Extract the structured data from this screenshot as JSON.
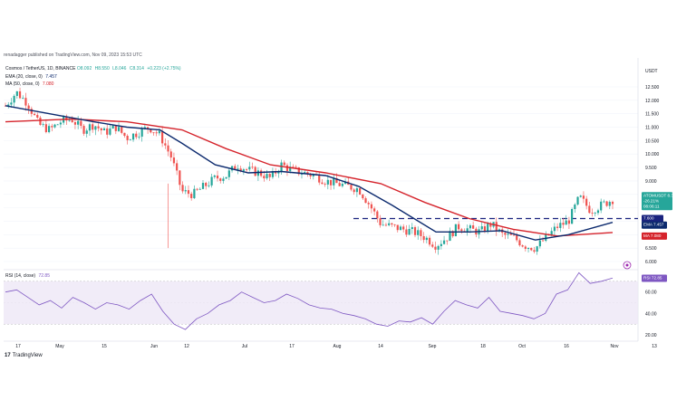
{
  "header": {
    "published_by": "renadagger published on TradingView.com, Nov 09, 2023 15:53 UTC"
  },
  "legend": {
    "symbol": "Cosmos / TetherUS, 1D, BINANCE",
    "ohlc": {
      "open": "O8.092",
      "high": "H8.550",
      "low": "L8.046",
      "close": "C8.314",
      "change": "+0.223 (+2.75%)"
    },
    "ema_label": "EMA (20, close, 0)",
    "ema_value": "7.457",
    "ma_label": "MA (50, close, 0)",
    "ma_value": "7.080",
    "rsi_label": "RSI (14, close)",
    "rsi_value": "72.85"
  },
  "price_axis": {
    "currency": "USDT",
    "ticks": [
      "12.500",
      "12.000",
      "11.500",
      "11.000",
      "10.500",
      "10.000",
      "9.500",
      "9.000",
      "8.500",
      "8.000",
      "7.500",
      "7.000",
      "6.500",
      "6.000"
    ],
    "badges": {
      "symbol": {
        "label": "ATOMUSDT",
        "price": "8.314",
        "change": "-26.21%",
        "countdown": "08:06:11"
      },
      "line": {
        "price": "7.600"
      },
      "ema": {
        "label": "EMA",
        "price": "7.457"
      },
      "ma": {
        "label": "MA",
        "price": "7.080"
      }
    }
  },
  "rsi_axis": {
    "ticks": [
      "60.00",
      "40.00",
      "20.00"
    ],
    "badge": {
      "label": "RSI",
      "value": "72.85"
    }
  },
  "time_axis": {
    "labels": [
      "17",
      "May",
      "15",
      "Jun",
      "12",
      "Jul",
      "17",
      "Aug",
      "14",
      "Sep",
      "18",
      "Oct",
      "16",
      "Nov",
      "13"
    ]
  },
  "colors": {
    "up": "#26a69a",
    "down": "#ef5350",
    "ema": "#0c2a6e",
    "ma": "#d5232b",
    "rsi": "#7e57c2",
    "rsi_band": "#ede7f6",
    "support_line": "#1a237e"
  },
  "chart_data": {
    "type": "candlestick",
    "symbol": "ATOMUSDT",
    "interval": "1D",
    "y_range": [
      6.0,
      12.5
    ],
    "support_line": 7.6,
    "close_series": [
      {
        "x": "Apr 10",
        "y": 11.8
      },
      {
        "x": "Apr 14",
        "y": 12.3
      },
      {
        "x": "Apr 17",
        "y": 11.9
      },
      {
        "x": "Apr 20",
        "y": 11.1
      },
      {
        "x": "Apr 24",
        "y": 10.9
      },
      {
        "x": "Apr 27",
        "y": 11.2
      },
      {
        "x": "May 1",
        "y": 11.3
      },
      {
        "x": "May 5",
        "y": 10.9
      },
      {
        "x": "May 9",
        "y": 11.1
      },
      {
        "x": "May 13",
        "y": 10.8
      },
      {
        "x": "May 17",
        "y": 11.0
      },
      {
        "x": "May 21",
        "y": 10.6
      },
      {
        "x": "May 25",
        "y": 10.8
      },
      {
        "x": "May 29",
        "y": 11.0
      },
      {
        "x": "Jun 2",
        "y": 10.7
      },
      {
        "x": "Jun 6",
        "y": 9.9
      },
      {
        "x": "Jun 10",
        "y": 8.6
      },
      {
        "x": "Jun 14",
        "y": 8.5
      },
      {
        "x": "Jun 18",
        "y": 8.8
      },
      {
        "x": "Jun 22",
        "y": 9.1
      },
      {
        "x": "Jun 26",
        "y": 9.2
      },
      {
        "x": "Jul 1",
        "y": 9.6
      },
      {
        "x": "Jul 5",
        "y": 9.4
      },
      {
        "x": "Jul 9",
        "y": 9.3
      },
      {
        "x": "Jul 13",
        "y": 9.1
      },
      {
        "x": "Jul 17",
        "y": 9.6
      },
      {
        "x": "Jul 21",
        "y": 9.4
      },
      {
        "x": "Jul 25",
        "y": 9.3
      },
      {
        "x": "Jul 29",
        "y": 9.2
      },
      {
        "x": "Aug 2",
        "y": 9.0
      },
      {
        "x": "Aug 6",
        "y": 8.9
      },
      {
        "x": "Aug 10",
        "y": 8.8
      },
      {
        "x": "Aug 14",
        "y": 8.7
      },
      {
        "x": "Aug 17",
        "y": 8.1
      },
      {
        "x": "Aug 21",
        "y": 7.4
      },
      {
        "x": "Aug 25",
        "y": 7.3
      },
      {
        "x": "Aug 29",
        "y": 7.2
      },
      {
        "x": "Sep 2",
        "y": 7.1
      },
      {
        "x": "Sep 6",
        "y": 6.9
      },
      {
        "x": "Sep 10",
        "y": 6.6
      },
      {
        "x": "Sep 14",
        "y": 6.9
      },
      {
        "x": "Sep 18",
        "y": 7.3
      },
      {
        "x": "Sep 22",
        "y": 7.2
      },
      {
        "x": "Sep 26",
        "y": 7.1
      },
      {
        "x": "Sep 30",
        "y": 7.4
      },
      {
        "x": "Oct 4",
        "y": 7.0
      },
      {
        "x": "Oct 8",
        "y": 6.9
      },
      {
        "x": "Oct 12",
        "y": 6.6
      },
      {
        "x": "Oct 16",
        "y": 6.5
      },
      {
        "x": "Oct 19",
        "y": 6.9
      },
      {
        "x": "Oct 23",
        "y": 7.3
      },
      {
        "x": "Oct 27",
        "y": 7.5
      },
      {
        "x": "Oct 31",
        "y": 8.4
      },
      {
        "x": "Nov 3",
        "y": 7.9
      },
      {
        "x": "Nov 6",
        "y": 8.1
      },
      {
        "x": "Nov 9",
        "y": 8.314
      }
    ],
    "ema20": [
      {
        "x": "Apr 10",
        "y": 11.8
      },
      {
        "x": "Apr 24",
        "y": 11.5
      },
      {
        "x": "May 9",
        "y": 11.2
      },
      {
        "x": "May 21",
        "y": 11.0
      },
      {
        "x": "Jun 2",
        "y": 10.9
      },
      {
        "x": "Jun 10",
        "y": 10.4
      },
      {
        "x": "Jun 22",
        "y": 9.6
      },
      {
        "x": "Jul 5",
        "y": 9.3
      },
      {
        "x": "Jul 17",
        "y": 9.35
      },
      {
        "x": "Aug 2",
        "y": 9.2
      },
      {
        "x": "Aug 14",
        "y": 8.8
      },
      {
        "x": "Aug 25",
        "y": 8.1
      },
      {
        "x": "Sep 10",
        "y": 7.1
      },
      {
        "x": "Sep 22",
        "y": 7.1
      },
      {
        "x": "Oct 4",
        "y": 7.15
      },
      {
        "x": "Oct 16",
        "y": 6.8
      },
      {
        "x": "Oct 27",
        "y": 7.0
      },
      {
        "x": "Nov 9",
        "y": 7.457
      }
    ],
    "ma50": [
      {
        "x": "Apr 10",
        "y": 11.2
      },
      {
        "x": "May 1",
        "y": 11.3
      },
      {
        "x": "May 21",
        "y": 11.2
      },
      {
        "x": "Jun 10",
        "y": 10.9
      },
      {
        "x": "Jun 26",
        "y": 10.2
      },
      {
        "x": "Jul 13",
        "y": 9.6
      },
      {
        "x": "Aug 2",
        "y": 9.3
      },
      {
        "x": "Aug 21",
        "y": 8.9
      },
      {
        "x": "Sep 6",
        "y": 8.2
      },
      {
        "x": "Sep 22",
        "y": 7.6
      },
      {
        "x": "Oct 8",
        "y": 7.2
      },
      {
        "x": "Oct 23",
        "y": 6.95
      },
      {
        "x": "Nov 9",
        "y": 7.08
      }
    ],
    "rsi": {
      "name": "RSI (14, close)",
      "y_range": [
        20,
        80
      ],
      "bands": [
        30,
        70
      ],
      "last": 72.85,
      "values": [
        60,
        62,
        55,
        48,
        52,
        45,
        55,
        50,
        44,
        50,
        48,
        44,
        52,
        58,
        42,
        30,
        25,
        35,
        40,
        48,
        52,
        60,
        55,
        50,
        52,
        58,
        54,
        48,
        45,
        44,
        40,
        38,
        35,
        30,
        28,
        33,
        32,
        36,
        30,
        42,
        52,
        48,
        45,
        55,
        42,
        40,
        38,
        35,
        40,
        58,
        62,
        78,
        68,
        70,
        73
      ]
    }
  }
}
